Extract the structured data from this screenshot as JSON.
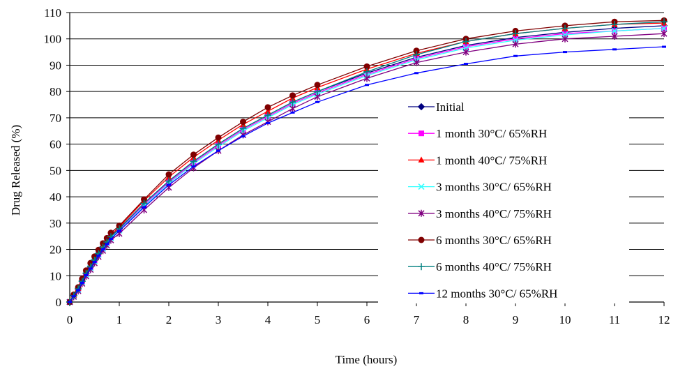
{
  "chart_data": {
    "type": "line",
    "xlabel": "Time (hours)",
    "ylabel": "Drug Released (%)",
    "xlim": [
      0,
      12
    ],
    "ylim": [
      0,
      110
    ],
    "x_ticks": [
      0,
      1,
      2,
      3,
      4,
      5,
      6,
      7,
      8,
      9,
      10,
      11,
      12
    ],
    "y_ticks": [
      0,
      10,
      20,
      30,
      40,
      50,
      60,
      70,
      80,
      90,
      100,
      110
    ],
    "grid": "horizontal",
    "legend_position": "right",
    "x": [
      0,
      0.08,
      0.17,
      0.25,
      0.33,
      0.42,
      0.5,
      0.58,
      0.67,
      0.75,
      0.83,
      1,
      1.5,
      2,
      2.5,
      3,
      3.5,
      4,
      4.5,
      5,
      6,
      7,
      8,
      9,
      10,
      11,
      12
    ],
    "series": [
      {
        "name": "Initial",
        "color": "#000080",
        "marker": "diamond",
        "values": [
          0,
          2.5,
          5,
          8,
          11,
          13.5,
          16,
          18.5,
          21,
          23,
          25,
          28,
          37.5,
          46,
          53.5,
          60,
          66,
          71,
          76,
          80,
          87,
          93,
          97.5,
          100.5,
          102.5,
          104,
          105
        ]
      },
      {
        "name": "1 month 30°C/ 65%RH",
        "color": "#ff00ff",
        "marker": "square",
        "values": [
          0,
          2.4,
          4.9,
          7.8,
          10.8,
          13.3,
          15.8,
          18.2,
          20.6,
          22.6,
          24.6,
          27.5,
          37,
          45.5,
          53,
          59.5,
          65.5,
          70.5,
          75.5,
          79.5,
          86.5,
          92.5,
          97,
          100,
          102,
          103,
          104
        ]
      },
      {
        "name": "1 month 40°C/ 75%RH",
        "color": "#ff0000",
        "marker": "triangle",
        "values": [
          0,
          2.6,
          5.2,
          8.3,
          11.4,
          14,
          16.5,
          19,
          21.5,
          23.5,
          25.5,
          28.5,
          38.5,
          47.5,
          55,
          61.5,
          67.5,
          72.5,
          77.5,
          81.5,
          88.5,
          94.5,
          99,
          102,
          104,
          105.5,
          106
        ]
      },
      {
        "name": "3 months 30°C/ 65%RH",
        "color": "#33ffff",
        "marker": "x",
        "values": [
          0,
          2.3,
          4.7,
          7.6,
          10.5,
          13,
          15.5,
          18,
          20.3,
          22.3,
          24.3,
          27.2,
          36.5,
          45,
          52.5,
          59,
          65,
          70,
          75,
          79,
          86,
          92,
          96.5,
          99.5,
          101.5,
          103,
          104
        ]
      },
      {
        "name": "3 months 40°C/ 75%RH",
        "color": "#800080",
        "marker": "star",
        "values": [
          0,
          2,
          4.2,
          7,
          9.8,
          12.3,
          14.8,
          17.2,
          19.5,
          21.5,
          23.5,
          26,
          35,
          43.5,
          51,
          57.5,
          63.5,
          68.5,
          73.5,
          78,
          85,
          91,
          95,
          98,
          100,
          101,
          102
        ]
      },
      {
        "name": "6 months 30°C/ 65%RH",
        "color": "#800000",
        "marker": "circle",
        "values": [
          0,
          2.8,
          5.6,
          8.8,
          12,
          14.8,
          17.3,
          19.8,
          22.3,
          24.3,
          26.3,
          29,
          39,
          48.5,
          56,
          62.5,
          68.5,
          74,
          78.5,
          82.5,
          89.5,
          95.5,
          100,
          103,
          105,
          106.5,
          107
        ]
      },
      {
        "name": "6 months 40°C/ 75%RH",
        "color": "#008080",
        "marker": "plus",
        "values": [
          0,
          2.4,
          5,
          7.9,
          10.9,
          13.4,
          15.9,
          18.4,
          20.8,
          22.8,
          24.8,
          27.8,
          37.5,
          46,
          53.5,
          60,
          66,
          71,
          76,
          80,
          87.5,
          94,
          99,
          102,
          104,
          105.5,
          106.5
        ]
      },
      {
        "name": "12 months 30°C/ 65%RH",
        "color": "#0000ff",
        "marker": "dash",
        "values": [
          0,
          2.2,
          4.5,
          7.3,
          10.2,
          12.7,
          15.2,
          17.6,
          20,
          22,
          24,
          27,
          36,
          44.5,
          51.5,
          57.5,
          63,
          68,
          72,
          76,
          82.5,
          87,
          90.5,
          93.5,
          95,
          96,
          97
        ]
      }
    ]
  }
}
